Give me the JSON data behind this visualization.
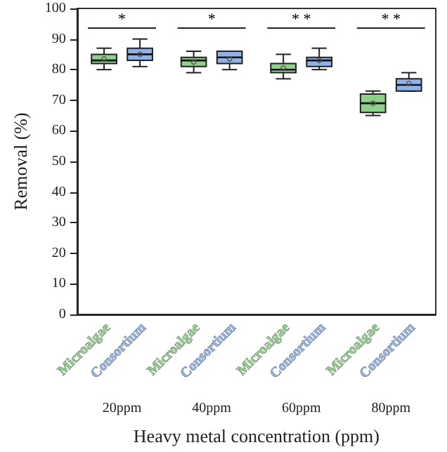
{
  "chart_data": {
    "type": "box",
    "xlabel": "Heavy metal concentration (ppm)",
    "ylabel": "Removal (%)",
    "categories": [
      "20ppm",
      "40ppm",
      "60ppm",
      "80ppm"
    ],
    "series": [
      {
        "name": "Microalgae",
        "color": "#8fd08a",
        "boxes": [
          {
            "low": 80,
            "q1": 82,
            "median": 83,
            "q3": 85,
            "high": 87,
            "mean": 83.5
          },
          {
            "low": 79,
            "q1": 81,
            "median": 83,
            "q3": 84,
            "high": 86,
            "mean": 82.5
          },
          {
            "low": 77,
            "q1": 79,
            "median": 80,
            "q3": 82,
            "high": 85,
            "mean": 80.5
          },
          {
            "low": 65,
            "q1": 66,
            "median": 69,
            "q3": 72,
            "high": 73,
            "mean": 69
          }
        ]
      },
      {
        "name": "Consortium",
        "color": "#8fb2ea",
        "boxes": [
          {
            "low": 81,
            "q1": 83,
            "median": 85,
            "q3": 87,
            "high": 90,
            "mean": 85
          },
          {
            "low": 80,
            "q1": 82,
            "median": 84,
            "q3": 86,
            "high": 86,
            "mean": 83.5
          },
          {
            "low": 80,
            "q1": 81,
            "median": 83,
            "q3": 84,
            "high": 87,
            "mean": 83
          },
          {
            "low": 73,
            "q1": 73,
            "median": 75,
            "q3": 77,
            "high": 79,
            "mean": 75.5
          }
        ]
      }
    ],
    "annotations": [
      "*",
      "*",
      "* *",
      "* *"
    ],
    "ylim": [
      0,
      100
    ],
    "yticks": [
      0,
      10,
      20,
      30,
      40,
      50,
      60,
      70,
      80,
      90,
      100
    ],
    "grid": false,
    "legend": false,
    "marker": "circle"
  }
}
